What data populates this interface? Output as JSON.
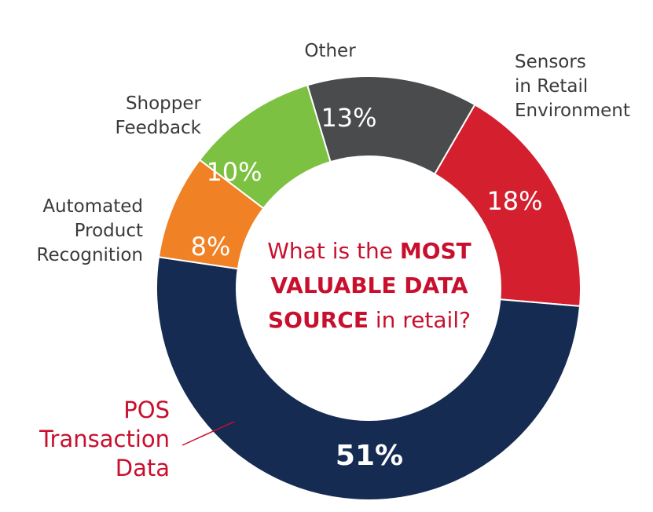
{
  "chart_data": {
    "type": "pie",
    "variant": "donut",
    "slices": [
      {
        "name": "Sensors in Retail Environment",
        "lines": [
          "Sensors",
          "in Retail",
          "Environment"
        ],
        "value": 18,
        "label": "18%",
        "color": "#d41f2f"
      },
      {
        "name": "POS Transaction Data",
        "lines": [
          "POS",
          "Transaction",
          "Data"
        ],
        "value": 51,
        "label": "51%",
        "color": "#152b52"
      },
      {
        "name": "Automated Product Recognition",
        "lines": [
          "Automated",
          "Product",
          "Recognition"
        ],
        "value": 8,
        "label": "8%",
        "color": "#f08124"
      },
      {
        "name": "Shopper Feedback",
        "lines": [
          "Shopper",
          "Feedback"
        ],
        "value": 10,
        "label": "10%",
        "color": "#7dc142"
      },
      {
        "name": "Other",
        "lines": [
          "Other"
        ],
        "value": 13,
        "label": "13%",
        "color": "#4a4b4d"
      }
    ],
    "center_text": {
      "t1": "What is the ",
      "b1": "MOST",
      "b2": "VALUABLE DATA",
      "b3": "SOURCE",
      "t2": " in retail?"
    }
  }
}
